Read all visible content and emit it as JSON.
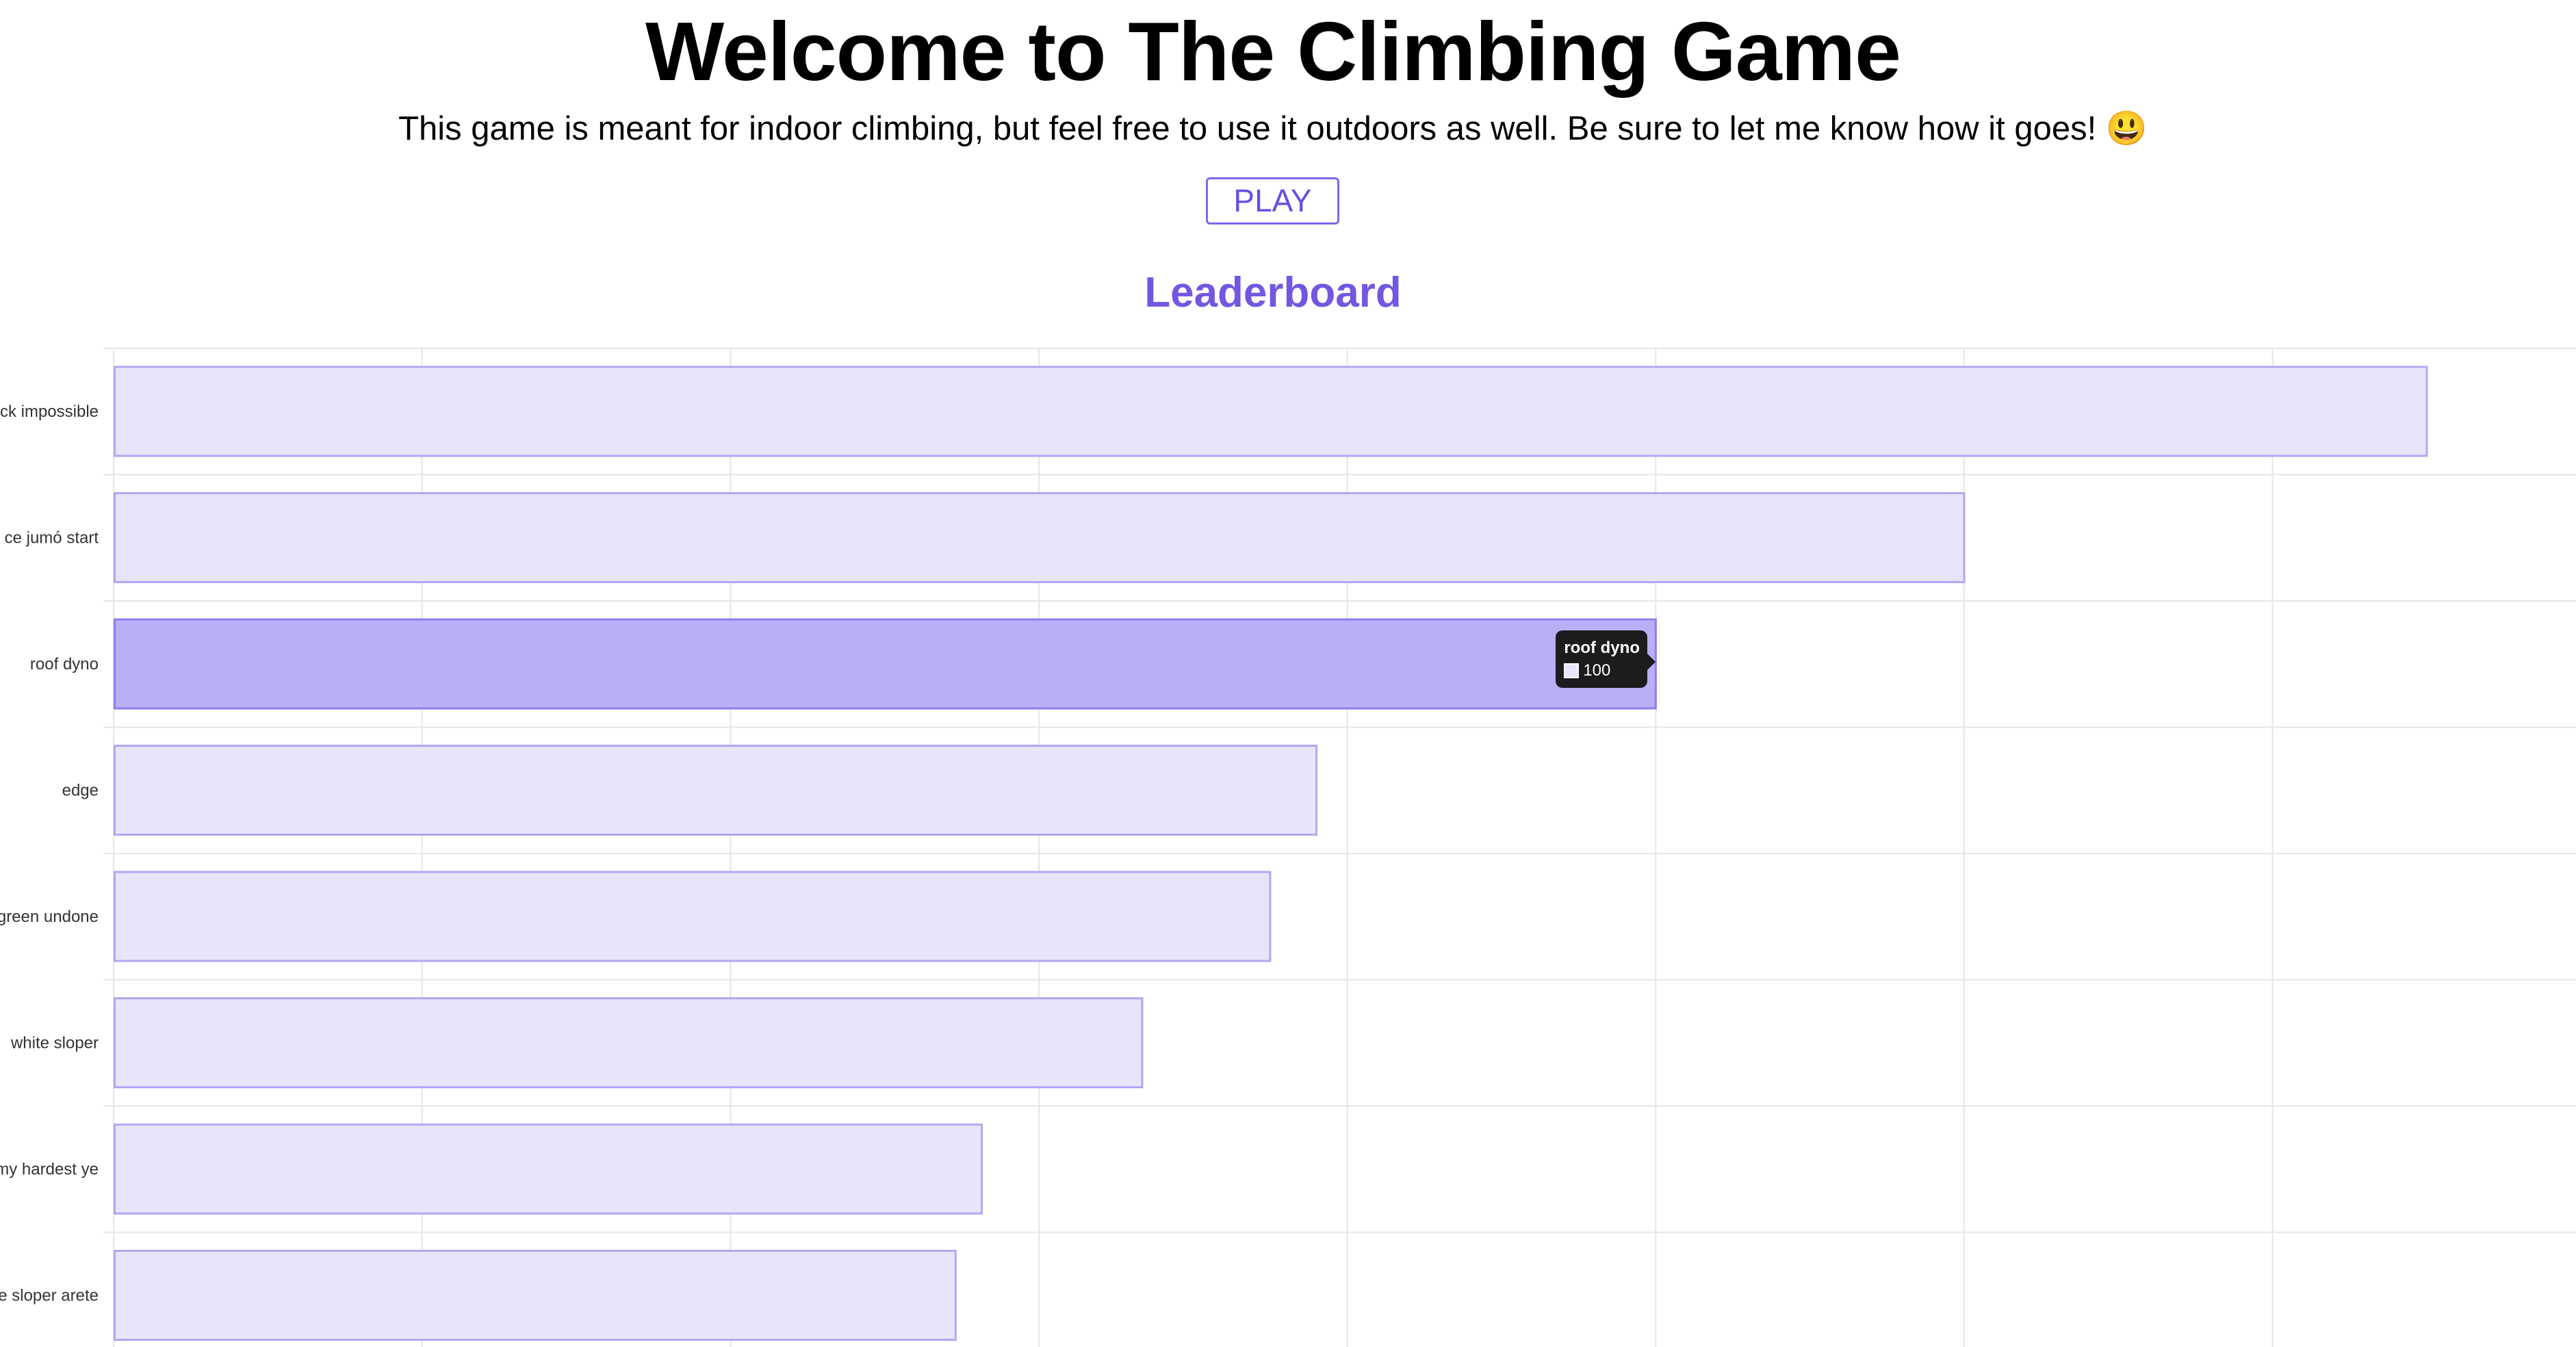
{
  "header": {
    "title": "Welcome to The Climbing Game",
    "subtitle": "This game is meant for indoor climbing, but feel free to use it outdoors as well. Be sure to let me know how it goes! 😃",
    "play_label": "PLAY"
  },
  "leaderboard": {
    "title": "Leaderboard"
  },
  "chart_data": {
    "type": "bar",
    "orientation": "horizontal",
    "categories": [
      "ck impossible",
      "ce jumó start",
      "roof dyno",
      "edge",
      "green undone",
      "white sloper",
      "my hardest ye",
      "e sloper arete"
    ],
    "values": [
      150,
      120,
      100,
      78,
      75,
      66.7,
      56.3,
      54.6
    ],
    "xlim": [
      0,
      160
    ],
    "grid": true,
    "highlighted_index": 2
  },
  "tooltip": {
    "title": "roof dyno",
    "value": "100"
  },
  "colors": {
    "accent": "#7357e0",
    "bar_fill": "#e8e5fb",
    "bar_border": "#b3a6f3",
    "bar_fill_hover": "#b8b0f6",
    "bar_border_hover": "#8f7df0",
    "grid": "#e6e6e6",
    "tooltip_bg": "#1c1c1f"
  }
}
